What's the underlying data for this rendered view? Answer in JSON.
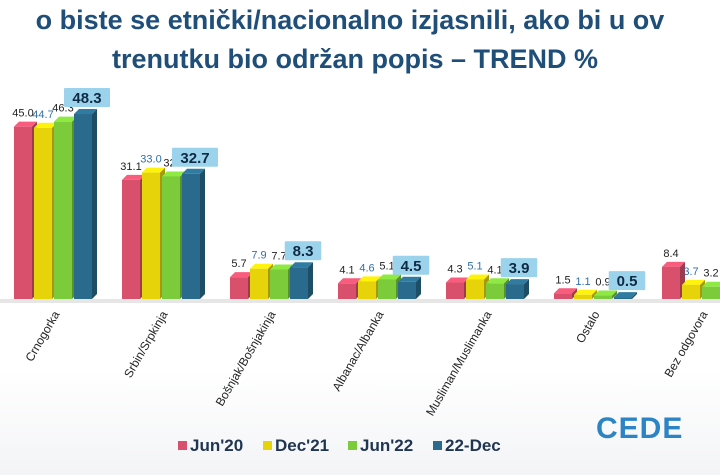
{
  "title_lines": [
    "o biste se etnički/nacionalno izjasnili, ako bi u ov",
    "trenutku bio održan popis – TREND %"
  ],
  "logo_text": "CEDE",
  "chart_data": {
    "type": "bar",
    "categories": [
      "Crnogorka",
      "Srbin/Srpkinja",
      "Bošnjak/Bošnjakinja",
      "Albanac/Albanka",
      "Musliman/Muslimanka",
      "Ostalo",
      "Bez odgovora"
    ],
    "series": [
      {
        "name": "Jun'20",
        "color": "#d9506d",
        "values": [
          45.0,
          31.1,
          5.7,
          4.1,
          4.3,
          1.5,
          8.4
        ],
        "labels": [
          "45.0",
          "31.1",
          "5.7",
          "4.1",
          "4.3",
          "1.5",
          "8.4"
        ]
      },
      {
        "name": "Dec'21",
        "color": "#e6d30a",
        "values": [
          44.7,
          33.0,
          7.9,
          4.6,
          5.1,
          1.1,
          3.7
        ],
        "labels": [
          "44.7",
          "33.0",
          "7.9",
          "4.6",
          "5.1",
          "1.1",
          "3.7"
        ]
      },
      {
        "name": "Jun'22",
        "color": "#7ccb3a",
        "values": [
          46.3,
          32.0,
          7.7,
          5.1,
          4.1,
          0.9,
          3.2
        ],
        "labels": [
          "46.3",
          "32.",
          "7.7",
          "5.1",
          "4.1",
          "0.9",
          "3.2"
        ]
      },
      {
        "name": "22-Dec",
        "color": "#2a6b8d",
        "values": [
          48.3,
          32.7,
          8.3,
          4.5,
          3.9,
          0.5,
          null
        ],
        "labels": [
          "48.3",
          "32.7",
          "8.3",
          "4.5",
          "3.9",
          "0.5",
          ""
        ]
      }
    ],
    "legend_position": "bottom",
    "grid": false
  }
}
